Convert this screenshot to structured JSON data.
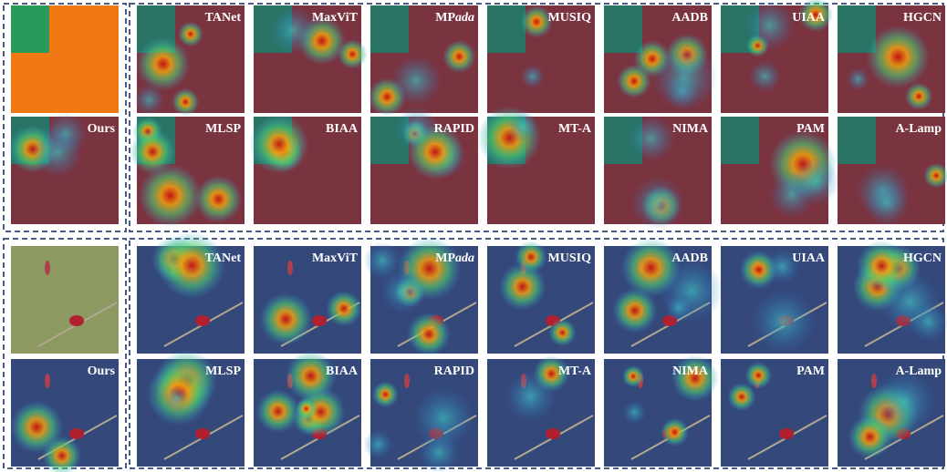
{
  "panels": [
    {
      "ours": "Ours",
      "row1": [
        "TANet",
        "MaxViT",
        {
          "regular": "MP",
          "italic": "ada"
        },
        "MUSIQ",
        "AADB",
        "UIAA",
        "HGCN"
      ],
      "row2": [
        "MLSP",
        "BIAA",
        "RAPID",
        "MT-A",
        "NIMA",
        "PAM",
        "A-Lamp"
      ]
    },
    {
      "ours": "Ours",
      "row1": [
        "TANet",
        "MaxViT",
        {
          "regular": "MP",
          "italic": "ada"
        },
        "MUSIQ",
        "AADB",
        "UIAA",
        "HGCN"
      ],
      "row2": [
        "MLSP",
        "BIAA",
        "RAPID",
        "MT-A",
        "NIMA",
        "PAM",
        "A-Lamp"
      ]
    }
  ]
}
